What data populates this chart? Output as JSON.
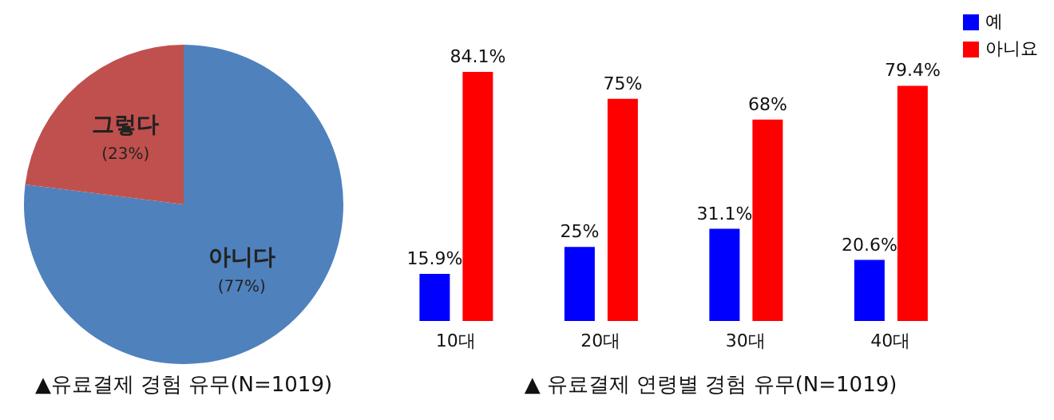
{
  "chart_data": [
    {
      "type": "pie",
      "title": "▲유료결제 경험 유무(N=1019)",
      "categories": [
        "아니다",
        "그렇다"
      ],
      "values": [
        77,
        23
      ],
      "colors": [
        "#4f81bd",
        "#c0504d"
      ],
      "value_labels": [
        "(77%)",
        "(23%)"
      ],
      "legend": false
    },
    {
      "type": "bar",
      "title": "▲ 유료결제 연령별 경험 유무(N=1019)",
      "categories": [
        "10대",
        "20대",
        "30대",
        "40대"
      ],
      "legend": "top right",
      "series": [
        {
          "name": "예",
          "color": "#0000ff",
          "values": [
            15.9,
            25,
            31.1,
            20.6
          ],
          "value_labels": [
            "15.9%",
            "25%",
            "31.1%",
            "20.6%"
          ]
        },
        {
          "name": "아니요",
          "color": "#ff0000",
          "values": [
            84.1,
            75,
            68,
            79.4
          ],
          "value_labels": [
            "84.1%",
            "75%",
            "68%",
            "79.4%"
          ]
        }
      ]
    }
  ]
}
